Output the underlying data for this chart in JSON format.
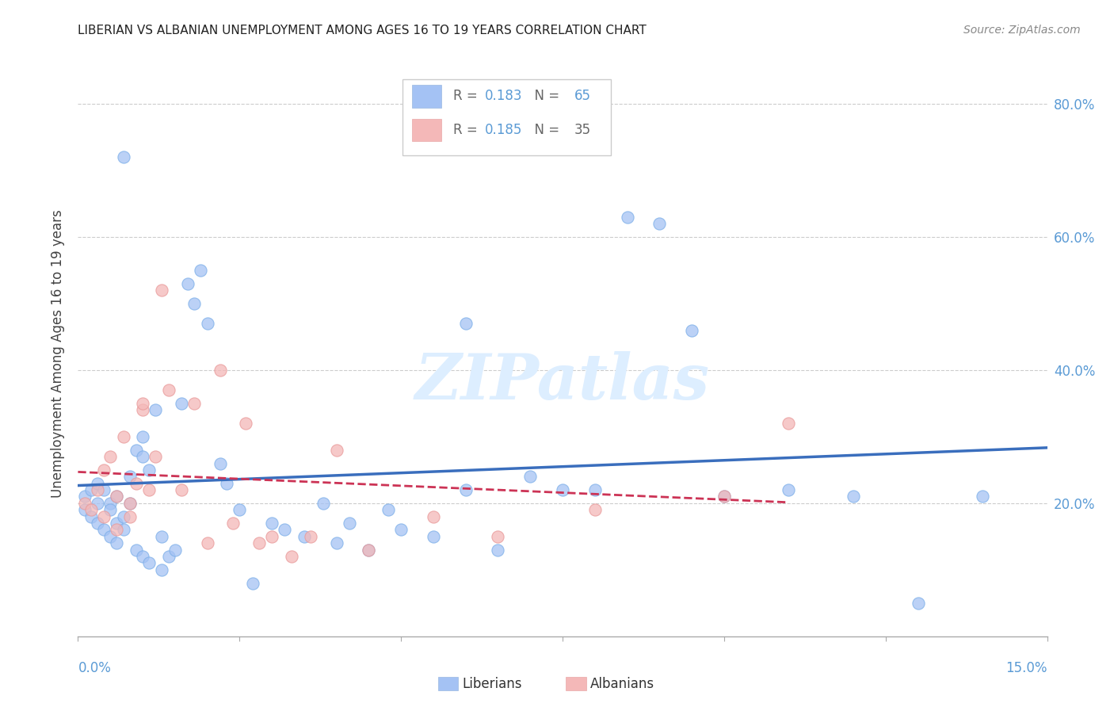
{
  "title": "LIBERIAN VS ALBANIAN UNEMPLOYMENT AMONG AGES 16 TO 19 YEARS CORRELATION CHART",
  "source": "Source: ZipAtlas.com",
  "ylabel": "Unemployment Among Ages 16 to 19 years",
  "ylabel_right_ticks": [
    "20.0%",
    "40.0%",
    "60.0%",
    "80.0%"
  ],
  "ylabel_right_vals": [
    0.2,
    0.4,
    0.6,
    0.8
  ],
  "xmin": 0.0,
  "xmax": 0.15,
  "ymin": 0.0,
  "ymax": 0.85,
  "liberian_R": "0.183",
  "liberian_N": "65",
  "albanian_R": "0.185",
  "albanian_N": "35",
  "liberian_color": "#a4c2f4",
  "albanian_color": "#f4b8b8",
  "liberian_line_color": "#3a6ebd",
  "albanian_line_color": "#cc3355",
  "watermark": "ZIPatlas",
  "liberian_x": [
    0.001,
    0.001,
    0.002,
    0.002,
    0.003,
    0.003,
    0.003,
    0.004,
    0.004,
    0.005,
    0.005,
    0.005,
    0.006,
    0.006,
    0.006,
    0.007,
    0.007,
    0.007,
    0.008,
    0.008,
    0.009,
    0.009,
    0.01,
    0.01,
    0.01,
    0.011,
    0.011,
    0.012,
    0.013,
    0.013,
    0.014,
    0.015,
    0.016,
    0.017,
    0.018,
    0.019,
    0.02,
    0.022,
    0.023,
    0.025,
    0.027,
    0.03,
    0.032,
    0.035,
    0.038,
    0.04,
    0.042,
    0.045,
    0.048,
    0.05,
    0.055,
    0.06,
    0.065,
    0.07,
    0.075,
    0.08,
    0.085,
    0.09,
    0.095,
    0.1,
    0.11,
    0.12,
    0.13,
    0.14,
    0.06
  ],
  "liberian_y": [
    0.21,
    0.19,
    0.22,
    0.18,
    0.2,
    0.17,
    0.23,
    0.16,
    0.22,
    0.2,
    0.15,
    0.19,
    0.17,
    0.21,
    0.14,
    0.18,
    0.16,
    0.72,
    0.2,
    0.24,
    0.28,
    0.13,
    0.3,
    0.12,
    0.27,
    0.11,
    0.25,
    0.34,
    0.15,
    0.1,
    0.12,
    0.13,
    0.35,
    0.53,
    0.5,
    0.55,
    0.47,
    0.26,
    0.23,
    0.19,
    0.08,
    0.17,
    0.16,
    0.15,
    0.2,
    0.14,
    0.17,
    0.13,
    0.19,
    0.16,
    0.15,
    0.22,
    0.13,
    0.24,
    0.22,
    0.22,
    0.63,
    0.62,
    0.46,
    0.21,
    0.22,
    0.21,
    0.05,
    0.21,
    0.47
  ],
  "albanian_x": [
    0.001,
    0.002,
    0.003,
    0.004,
    0.004,
    0.005,
    0.006,
    0.006,
    0.007,
    0.008,
    0.008,
    0.009,
    0.01,
    0.01,
    0.011,
    0.012,
    0.013,
    0.014,
    0.016,
    0.018,
    0.02,
    0.022,
    0.024,
    0.026,
    0.028,
    0.03,
    0.033,
    0.036,
    0.04,
    0.045,
    0.055,
    0.065,
    0.08,
    0.1,
    0.11
  ],
  "albanian_y": [
    0.2,
    0.19,
    0.22,
    0.18,
    0.25,
    0.27,
    0.21,
    0.16,
    0.3,
    0.2,
    0.18,
    0.23,
    0.34,
    0.35,
    0.22,
    0.27,
    0.52,
    0.37,
    0.22,
    0.35,
    0.14,
    0.4,
    0.17,
    0.32,
    0.14,
    0.15,
    0.12,
    0.15,
    0.28,
    0.13,
    0.18,
    0.15,
    0.19,
    0.21,
    0.32
  ]
}
